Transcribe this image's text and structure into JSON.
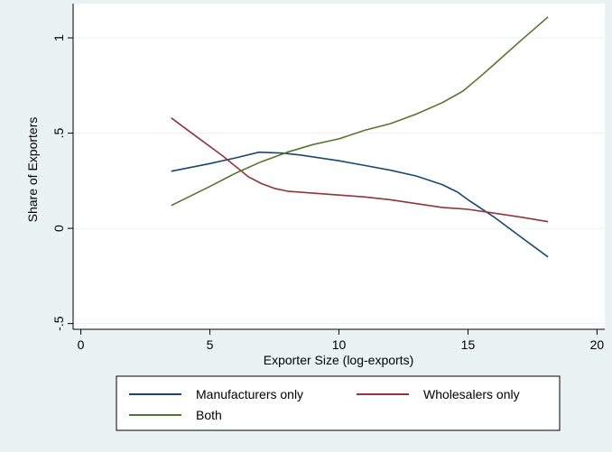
{
  "chart_data": {
    "type": "line",
    "title": "",
    "xlabel": "Exporter Size (log-exports)",
    "ylabel": "Share of Exporters",
    "xlim": [
      -0.3,
      20.3
    ],
    "ylim": [
      -0.53,
      1.18
    ],
    "x_ticks": [
      {
        "value": 0,
        "label": "0"
      },
      {
        "value": 5,
        "label": "5"
      },
      {
        "value": 10,
        "label": "10"
      },
      {
        "value": 15,
        "label": "15"
      },
      {
        "value": 20,
        "label": "20"
      }
    ],
    "y_ticks": [
      {
        "value": -0.5,
        "label": "-.5"
      },
      {
        "value": 0,
        "label": "0"
      },
      {
        "value": 0.5,
        "label": ".5"
      },
      {
        "value": 1,
        "label": "1"
      }
    ],
    "grid": true,
    "legend_position": "bottom",
    "series": [
      {
        "name": "Manufacturers only",
        "color": "#1a476f",
        "x": [
          3.5,
          5,
          6,
          6.9,
          7.8,
          8.5,
          9,
          10,
          11,
          12,
          13,
          14,
          14.6,
          15,
          16,
          17,
          18.1
        ],
        "y": [
          0.3,
          0.34,
          0.37,
          0.4,
          0.395,
          0.385,
          0.375,
          0.355,
          0.33,
          0.305,
          0.275,
          0.23,
          0.19,
          0.15,
          0.06,
          -0.04,
          -0.15
        ]
      },
      {
        "name": "Wholesalers only",
        "color": "#90353b",
        "x": [
          3.5,
          4.5,
          5.5,
          6.5,
          7,
          7.5,
          8,
          9,
          10,
          11,
          12,
          13,
          14,
          15,
          16,
          17,
          18.1
        ],
        "y": [
          0.58,
          0.48,
          0.38,
          0.27,
          0.235,
          0.21,
          0.195,
          0.185,
          0.175,
          0.165,
          0.15,
          0.13,
          0.11,
          0.1,
          0.08,
          0.06,
          0.035
        ]
      },
      {
        "name": "Both",
        "color": "#55752f",
        "x": [
          3.5,
          5,
          6,
          7,
          8,
          9,
          10,
          11,
          12,
          13,
          14,
          14.8,
          15.5,
          16,
          17,
          18.1
        ],
        "y": [
          0.12,
          0.22,
          0.29,
          0.35,
          0.4,
          0.44,
          0.47,
          0.515,
          0.55,
          0.6,
          0.66,
          0.72,
          0.8,
          0.86,
          0.98,
          1.11
        ]
      }
    ]
  }
}
